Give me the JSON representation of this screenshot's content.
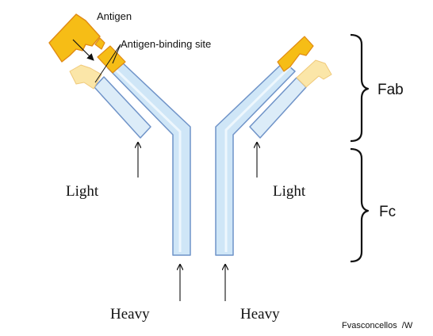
{
  "labels": {
    "antigen": "Antigen",
    "antigen_binding_site": "Antigen-binding site",
    "light_left": "Light",
    "light_right": "Light",
    "heavy_left": "Heavy",
    "heavy_right": "Heavy",
    "fab": "Fab",
    "fc": "Fc",
    "credit": "Fvasconcellos  /W"
  },
  "colors": {
    "chain_fill": "#cfe6f7",
    "chain_stroke": "#6f93c8",
    "chain_highlight": "#eef7fd",
    "constant_light_fill": "#dcecf8",
    "variable_heavy": "#f6bd16",
    "variable_light": "#fbe6a8",
    "antigen_fill": "#f6bd16",
    "antigen_stroke": "#e08a14",
    "line": "#111111"
  }
}
